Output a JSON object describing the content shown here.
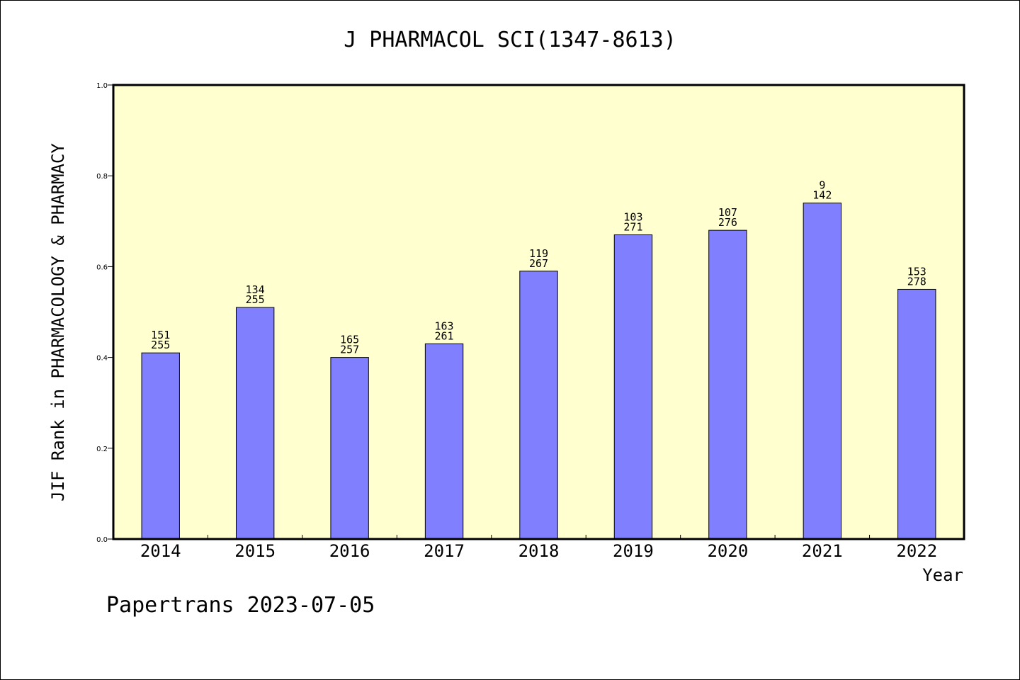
{
  "chart_data": {
    "type": "bar",
    "title": "J PHARMACOL SCI(1347-8613)",
    "xlabel": "Year",
    "ylabel": "JIF Rank in PHARMACOLOGY & PHARMACY",
    "ylim": [
      0,
      1.0
    ],
    "yticks": [
      "0.0",
      "0.2",
      "0.4",
      "0.6",
      "0.8",
      "1.0"
    ],
    "categories": [
      "2014",
      "2015",
      "2016",
      "2017",
      "2018",
      "2019",
      "2020",
      "2021",
      "2022"
    ],
    "values": [
      0.41,
      0.51,
      0.4,
      0.43,
      0.59,
      0.67,
      0.68,
      0.74,
      0.55
    ],
    "rank": [
      "151",
      "134",
      "165",
      "163",
      "119",
      "103",
      "107",
      "9",
      "153"
    ],
    "total": [
      "255",
      "255",
      "257",
      "261",
      "267",
      "271",
      "276",
      "142",
      "278"
    ],
    "colors": {
      "plot_bg": "#ffffd0",
      "bar": "#8080ff",
      "frame": "#000000"
    },
    "grid": false
  },
  "footer": "Papertrans 2023-07-05"
}
